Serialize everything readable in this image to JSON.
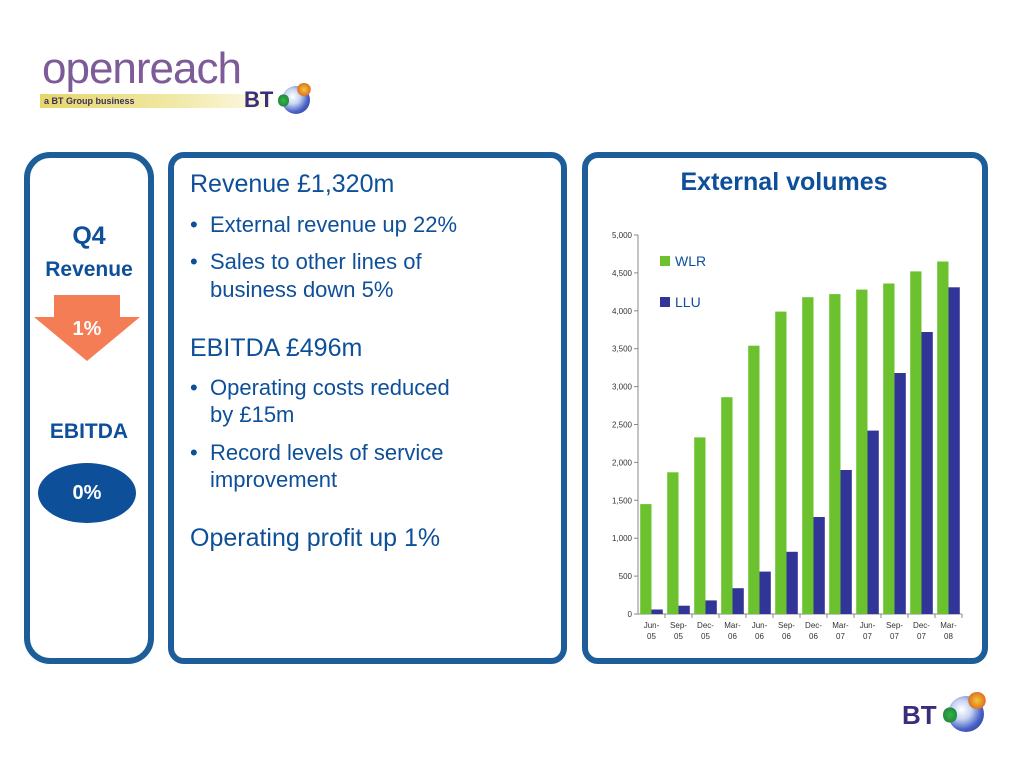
{
  "logo": {
    "word": "openreach",
    "tagline": "a BT Group business",
    "bt": "BT"
  },
  "left_panel": {
    "period": "Q4",
    "revenue_label": "Revenue",
    "revenue_change": "1%",
    "ebitda_label": "EBITDA",
    "ebitda_change": "0%"
  },
  "middle_panel": {
    "revenue_heading": "Revenue £1,320m",
    "revenue_bullets": [
      "External revenue up 22%",
      "Sales to other lines of",
      "business down 5%"
    ],
    "ebitda_heading": "EBITDA £496m",
    "ebitda_bullets": [
      "Operating costs reduced",
      "by £15m",
      "Record levels of service",
      "improvement"
    ],
    "profit_line": "Operating profit up 1%"
  },
  "colors": {
    "panel_border": "#1d5d9a",
    "text_blue": "#0e4f99",
    "wlr": "#6cc22e",
    "llu": "#303597",
    "arrow": "#f47d55"
  },
  "chart_data": {
    "type": "bar",
    "title": "External volumes",
    "categories": [
      [
        "Jun-",
        "05"
      ],
      [
        "Sep-",
        "05"
      ],
      [
        "Dec-",
        "05"
      ],
      [
        "Mar-",
        "06"
      ],
      [
        "Jun-",
        "06"
      ],
      [
        "Sep-",
        "06"
      ],
      [
        "Dec-",
        "06"
      ],
      [
        "Mar-",
        "07"
      ],
      [
        "Jun-",
        "07"
      ],
      [
        "Sep-",
        "07"
      ],
      [
        "Dec-",
        "07"
      ],
      [
        "Mar-",
        "08"
      ]
    ],
    "series": [
      {
        "name": "WLR",
        "color": "#6cc22e",
        "values": [
          1450,
          1870,
          2330,
          2860,
          3540,
          3990,
          4180,
          4220,
          4280,
          4360,
          4520,
          4650
        ]
      },
      {
        "name": "LLU",
        "color": "#303597",
        "values": [
          60,
          110,
          180,
          340,
          560,
          820,
          1280,
          1900,
          2420,
          3180,
          3720,
          4310
        ]
      }
    ],
    "ylim": [
      0,
      5000
    ],
    "yticks": [
      "0",
      "500",
      "1,000",
      "1,500",
      "2,000",
      "2,500",
      "3,000",
      "3,500",
      "4,000",
      "4,500",
      "5,000"
    ],
    "legend_position": "top-left",
    "grid": false
  },
  "footer": {
    "bt": "BT"
  }
}
